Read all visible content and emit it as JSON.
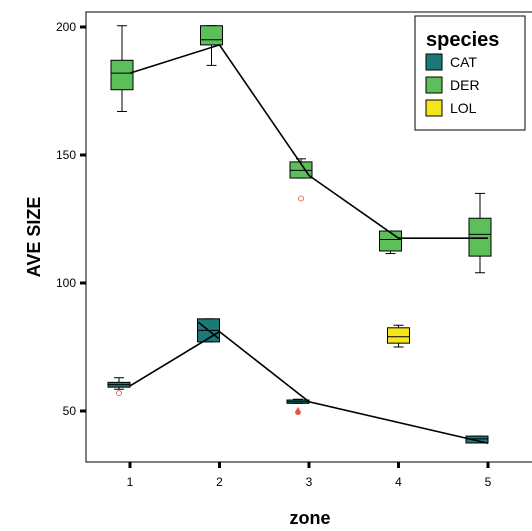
{
  "chart_data": {
    "type": "box",
    "xlabel": "zone",
    "ylabel": "AVE SIZE",
    "categories": [
      "1",
      "2",
      "3",
      "4",
      "5"
    ],
    "yticks": [
      50,
      100,
      150,
      200
    ],
    "ylim": [
      30,
      205
    ],
    "legend": {
      "title": "species",
      "position": "top-right",
      "entries": [
        {
          "label": "CAT",
          "color": "#1b7a78"
        },
        {
          "label": "DER",
          "color": "#5cbf5a"
        },
        {
          "label": "LOL",
          "color": "#f5e51b"
        }
      ]
    },
    "series": [
      {
        "name": "CAT",
        "color": "#1b7a78",
        "boxes": [
          {
            "zone": 1,
            "min": 58.5,
            "q1": 59.3,
            "median": 60.3,
            "q3": 61.2,
            "max": 63
          },
          {
            "zone": 2,
            "min": 77,
            "q1": 77,
            "median": 81.5,
            "q3": 86,
            "max": 86
          },
          {
            "zone": 3,
            "min": 53,
            "q1": 53,
            "median": 53.6,
            "q3": 54.3,
            "max": 54.6
          },
          {
            "zone": 5,
            "min": 37.5,
            "q1": 37.5,
            "median": 39.1,
            "q3": 40.2,
            "max": 40.2
          }
        ],
        "means": [
          {
            "zone": 1,
            "value": 59.8
          },
          {
            "zone": 2,
            "value": 81
          },
          {
            "zone": 3,
            "value": 53.6
          },
          {
            "zone": 5,
            "value": 37.4
          }
        ],
        "outliers": [
          {
            "zone": 1,
            "value": 57
          },
          {
            "zone": 3,
            "value": 50
          }
        ]
      },
      {
        "name": "DER",
        "color": "#5cbf5a",
        "boxes": [
          {
            "zone": 1,
            "min": 167,
            "q1": 175.5,
            "median": 182,
            "q3": 187,
            "max": 200.5
          },
          {
            "zone": 2,
            "min": 185,
            "q1": 193,
            "median": 195,
            "q3": 200.5,
            "max": 200.5
          },
          {
            "zone": 3,
            "min": 141,
            "q1": 141,
            "median": 144,
            "q3": 147.3,
            "max": 148.5
          },
          {
            "zone": 4,
            "min": 111.5,
            "q1": 112.5,
            "median": 117,
            "q3": 120.3,
            "max": 120.3
          },
          {
            "zone": 5,
            "min": 104,
            "q1": 110.5,
            "median": 119,
            "q3": 125.3,
            "max": 135
          }
        ],
        "means": [
          {
            "zone": 1,
            "value": 182
          },
          {
            "zone": 2,
            "value": 193
          },
          {
            "zone": 3,
            "value": 142
          },
          {
            "zone": 4,
            "value": 117.5
          },
          {
            "zone": 5,
            "value": 117.5
          }
        ],
        "outliers": [
          {
            "zone": 3,
            "value": 133
          }
        ]
      },
      {
        "name": "LOL",
        "color": "#f5e51b",
        "boxes": [
          {
            "zone": 4,
            "min": 75,
            "q1": 76.5,
            "median": 79,
            "q3": 82.5,
            "max": 83.5
          }
        ],
        "means": [],
        "outliers": []
      }
    ]
  }
}
